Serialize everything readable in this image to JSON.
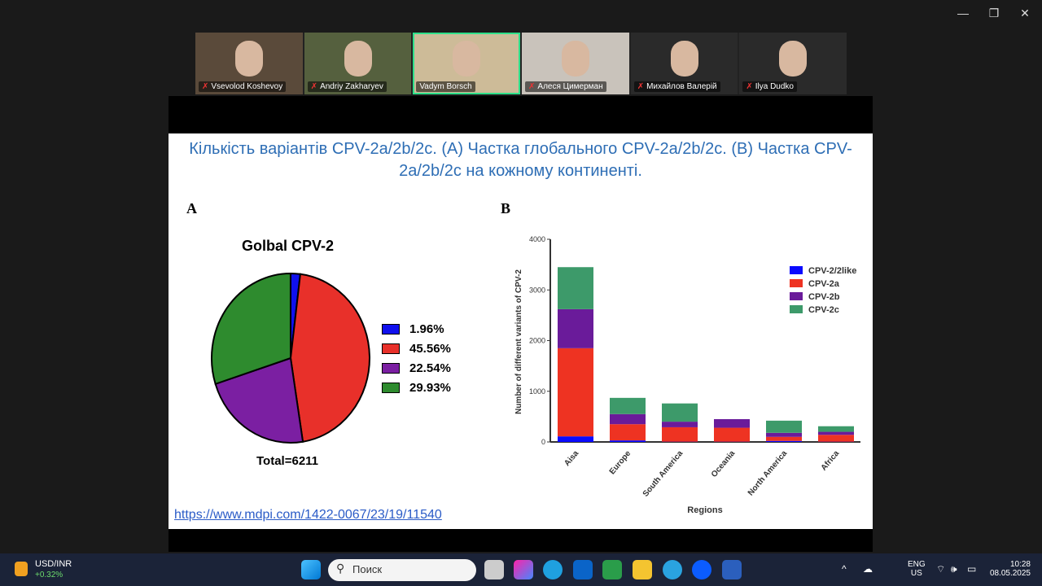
{
  "window_controls": {
    "minimize": "—",
    "restore": "❐",
    "close": "✕"
  },
  "participants": [
    {
      "name": "Vsevolod Koshevoy",
      "muted": true,
      "bg": "#5a4a3a"
    },
    {
      "name": "Andriy Zakharyev",
      "muted": true,
      "bg": "#55603e"
    },
    {
      "name": "Vadym Borsch",
      "muted": false,
      "active": true,
      "bg": "#cdbb98"
    },
    {
      "name": "Алеся Цимерман",
      "muted": true,
      "bg": "#c9c3bb"
    },
    {
      "name": "Михайлов Валерій",
      "muted": true,
      "bg": "#2a2a2a"
    },
    {
      "name": "Ilya Dudko",
      "muted": true,
      "bg": "#2a2a2a"
    }
  ],
  "slide": {
    "title": "Кількість варіантів CPV-2a/2b/2c. (A) Частка глобального CPV-2a/2b/2c. (B) Частка CPV-2a/2b/2c на кожному континенті.",
    "panel_a": "A",
    "panel_b": "B",
    "link": "https://www.mdpi.com/1422-0067/23/19/11540"
  },
  "chart_data": [
    {
      "type": "pie",
      "title": "Golbal CPV-2",
      "footer": "Total=6211",
      "slices": [
        {
          "label": "1.96%",
          "value": 1.96,
          "color": "#1010ee"
        },
        {
          "label": "45.56%",
          "value": 45.56,
          "color": "#e8302a"
        },
        {
          "label": "22.54%",
          "value": 22.54,
          "color": "#7b1fa2"
        },
        {
          "label": "29.93%",
          "value": 29.93,
          "color": "#2e8b2e"
        }
      ]
    },
    {
      "type": "bar",
      "stacked": true,
      "xlabel": "Regions",
      "ylabel": "Number of different variants of CPV-2",
      "ylim": [
        0,
        4000
      ],
      "yticks": [
        "0",
        "1000",
        "2000",
        "3000",
        "4000"
      ],
      "categories": [
        "Aisa",
        "Europe",
        "South America",
        "Oceania",
        "North America",
        "Africa"
      ],
      "legend_position": "top-right",
      "series": [
        {
          "name": "CPV-2/2like",
          "color": "#0a0aff",
          "values": [
            110,
            30,
            5,
            5,
            20,
            5
          ]
        },
        {
          "name": "CPV-2a",
          "color": "#ee3322",
          "values": [
            1740,
            320,
            285,
            275,
            80,
            135
          ]
        },
        {
          "name": "CPV-2b",
          "color": "#6a1b9a",
          "values": [
            770,
            200,
            110,
            170,
            80,
            60
          ]
        },
        {
          "name": "CPV-2c",
          "color": "#3d9a6a",
          "values": [
            830,
            320,
            360,
            0,
            240,
            110
          ]
        }
      ]
    }
  ],
  "taskbar": {
    "ticker": "USD/INR",
    "change": "+0.32%",
    "search_placeholder": "Поиск",
    "lang": "ENG",
    "region": "US",
    "time": "10:28",
    "date": "08.05.2025"
  }
}
